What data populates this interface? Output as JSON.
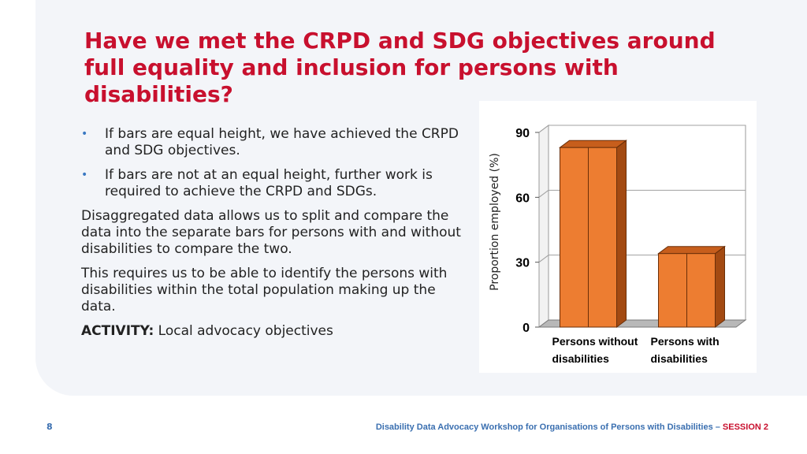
{
  "title": "Have we met the CRPD and SDG objectives around full equality and inclusion for persons with disabilities?",
  "bullets": [
    "If bars are equal height, we have achieved the CRPD and SDG objectives.",
    "If bars are not at an equal height, further work is required to achieve the CRPD and SDGs."
  ],
  "paragraphs": [
    "Disaggregated data allows us to split and compare the data into the separate bars for persons with and without disabilities to compare the two.",
    "This requires us to be able to identify the persons with disabilities within the total population making up the data."
  ],
  "activity": {
    "label": "ACTIVITY:",
    "text": " Local advocacy objectives"
  },
  "chart_data": {
    "type": "bar",
    "categories": [
      [
        "Persons without",
        "disabilities"
      ],
      [
        "Persons with",
        "disabilities"
      ]
    ],
    "values": [
      83,
      34
    ],
    "ylabel": "Proportion employed (%)",
    "ylim": [
      0,
      90
    ],
    "yticks": [
      0,
      30,
      60,
      90
    ],
    "bar_color": "#ed7d31",
    "grid": true
  },
  "footer": {
    "page": "8",
    "text": "Disability Data Advocacy Workshop for Organisations of Persons with Disabilities – ",
    "session": "SESSION 2"
  }
}
